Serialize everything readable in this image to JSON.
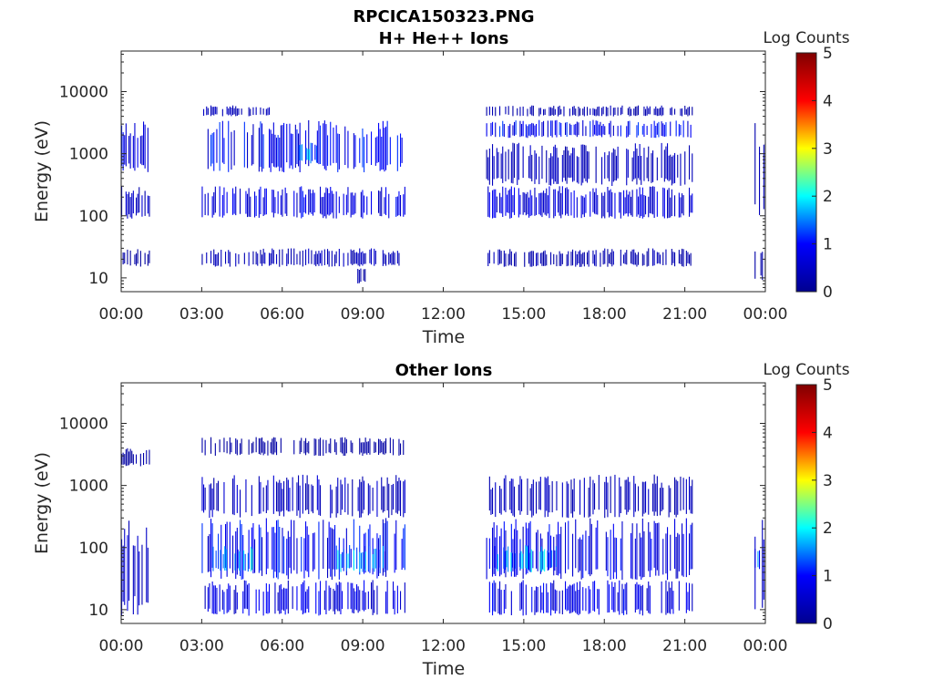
{
  "figure": {
    "title": "RPCICA150323.PNG"
  },
  "colorscale": {
    "name": "jet",
    "stops": [
      "#00008f",
      "#0000ff",
      "#00ffff",
      "#ffff00",
      "#ff0000",
      "#800000"
    ]
  },
  "chart_data": [
    {
      "type": "heatmap",
      "title": "H+ He++ Ions",
      "xlabel": "Time",
      "ylabel": "Energy (eV)",
      "x_unit": "hours",
      "xlim": [
        0,
        24
      ],
      "x_ticks": [
        0,
        3,
        6,
        9,
        12,
        15,
        18,
        21,
        24
      ],
      "x_tick_labels": [
        "00:00",
        "03:00",
        "06:00",
        "09:00",
        "12:00",
        "15:00",
        "18:00",
        "21:00",
        "00:00"
      ],
      "yscale": "log",
      "ylim": [
        6,
        45000
      ],
      "y_ticks": [
        10,
        100,
        1000,
        10000
      ],
      "y_tick_labels": [
        "10",
        "100",
        "1000",
        "10000"
      ],
      "colorbar": {
        "label": "Log Counts",
        "range": [
          0,
          5
        ],
        "ticks": [
          "0",
          "1",
          "2",
          "3",
          "4",
          "5"
        ]
      },
      "data_intervals_hours": [
        [
          0.0,
          1.05
        ],
        [
          3.0,
          10.6
        ],
        [
          13.6,
          21.3
        ],
        [
          23.6,
          24.0
        ]
      ],
      "bands": [
        {
          "t": [
            0.0,
            1.05
          ],
          "e": [
            500,
            3500
          ],
          "level": 0.8
        },
        {
          "t": [
            0.0,
            1.05
          ],
          "e": [
            90,
            300
          ],
          "level": 0.5
        },
        {
          "t": [
            0.0,
            1.05
          ],
          "e": [
            15,
            30
          ],
          "level": 0.2
        },
        {
          "t": [
            3.0,
            5.5
          ],
          "e": [
            4000,
            6000
          ],
          "level": 0.4
        },
        {
          "t": [
            3.0,
            10.6
          ],
          "e": [
            500,
            3500
          ],
          "level": 0.9
        },
        {
          "t": [
            6.5,
            7.3
          ],
          "e": [
            700,
            1500
          ],
          "level": 1.6
        },
        {
          "t": [
            3.0,
            10.6
          ],
          "e": [
            90,
            300
          ],
          "level": 0.8
        },
        {
          "t": [
            3.0,
            10.6
          ],
          "e": [
            15,
            30
          ],
          "level": 0.4
        },
        {
          "t": [
            8.8,
            9.1
          ],
          "e": [
            8,
            15
          ],
          "level": 0.3
        },
        {
          "t": [
            13.6,
            21.3
          ],
          "e": [
            4000,
            6000
          ],
          "level": 0.3
        },
        {
          "t": [
            13.6,
            21.3
          ],
          "e": [
            1800,
            3500
          ],
          "level": 0.9
        },
        {
          "t": [
            13.6,
            21.3
          ],
          "e": [
            300,
            1500
          ],
          "level": 0.4
        },
        {
          "t": [
            13.6,
            21.3
          ],
          "e": [
            90,
            300
          ],
          "level": 0.7
        },
        {
          "t": [
            13.6,
            21.3
          ],
          "e": [
            15,
            30
          ],
          "level": 0.3
        },
        {
          "t": [
            23.6,
            24.0
          ],
          "e": [
            90,
            5000
          ],
          "level": 0.3
        },
        {
          "t": [
            23.6,
            24.0
          ],
          "e": [
            9,
            30
          ],
          "level": 0.2
        }
      ]
    },
    {
      "type": "heatmap",
      "title": "Other Ions",
      "xlabel": "Time",
      "ylabel": "Energy (eV)",
      "x_unit": "hours",
      "xlim": [
        0,
        24
      ],
      "x_ticks": [
        0,
        3,
        6,
        9,
        12,
        15,
        18,
        21,
        24
      ],
      "x_tick_labels": [
        "00:00",
        "03:00",
        "06:00",
        "09:00",
        "12:00",
        "15:00",
        "18:00",
        "21:00",
        "00:00"
      ],
      "yscale": "log",
      "ylim": [
        6,
        45000
      ],
      "y_ticks": [
        10,
        100,
        1000,
        10000
      ],
      "y_tick_labels": [
        "10",
        "100",
        "1000",
        "10000"
      ],
      "colorbar": {
        "label": "Log Counts",
        "range": [
          0,
          5
        ],
        "ticks": [
          "0",
          "1",
          "2",
          "3",
          "4",
          "5"
        ]
      },
      "data_intervals_hours": [
        [
          0.0,
          1.05
        ],
        [
          3.0,
          10.6
        ],
        [
          13.6,
          21.3
        ],
        [
          23.6,
          24.0
        ]
      ],
      "bands": [
        {
          "t": [
            0.0,
            1.05
          ],
          "e": [
            8,
            300
          ],
          "level": 0.6
        },
        {
          "t": [
            0.0,
            1.05
          ],
          "e": [
            2000,
            4000
          ],
          "level": 0.2
        },
        {
          "t": [
            3.0,
            10.6
          ],
          "e": [
            3000,
            6000
          ],
          "level": 0.2
        },
        {
          "t": [
            3.0,
            10.6
          ],
          "e": [
            300,
            1500
          ],
          "level": 0.5
        },
        {
          "t": [
            3.0,
            10.6
          ],
          "e": [
            30,
            300
          ],
          "level": 0.9
        },
        {
          "t": [
            3.3,
            4.9
          ],
          "e": [
            40,
            110
          ],
          "level": 1.7
        },
        {
          "t": [
            8.0,
            10.0
          ],
          "e": [
            40,
            110
          ],
          "level": 1.5
        },
        {
          "t": [
            3.0,
            10.6
          ],
          "e": [
            8,
            30
          ],
          "level": 0.8
        },
        {
          "t": [
            13.6,
            21.3
          ],
          "e": [
            300,
            1500
          ],
          "level": 0.4
        },
        {
          "t": [
            13.6,
            21.3
          ],
          "e": [
            30,
            300
          ],
          "level": 0.8
        },
        {
          "t": [
            13.8,
            16.2
          ],
          "e": [
            40,
            110
          ],
          "level": 1.5
        },
        {
          "t": [
            13.6,
            21.3
          ],
          "e": [
            8,
            30
          ],
          "level": 0.8
        },
        {
          "t": [
            23.6,
            24.0
          ],
          "e": [
            8,
            300
          ],
          "level": 0.6
        },
        {
          "t": [
            23.6,
            24.0
          ],
          "e": [
            40,
            110
          ],
          "level": 1.4
        }
      ]
    }
  ]
}
